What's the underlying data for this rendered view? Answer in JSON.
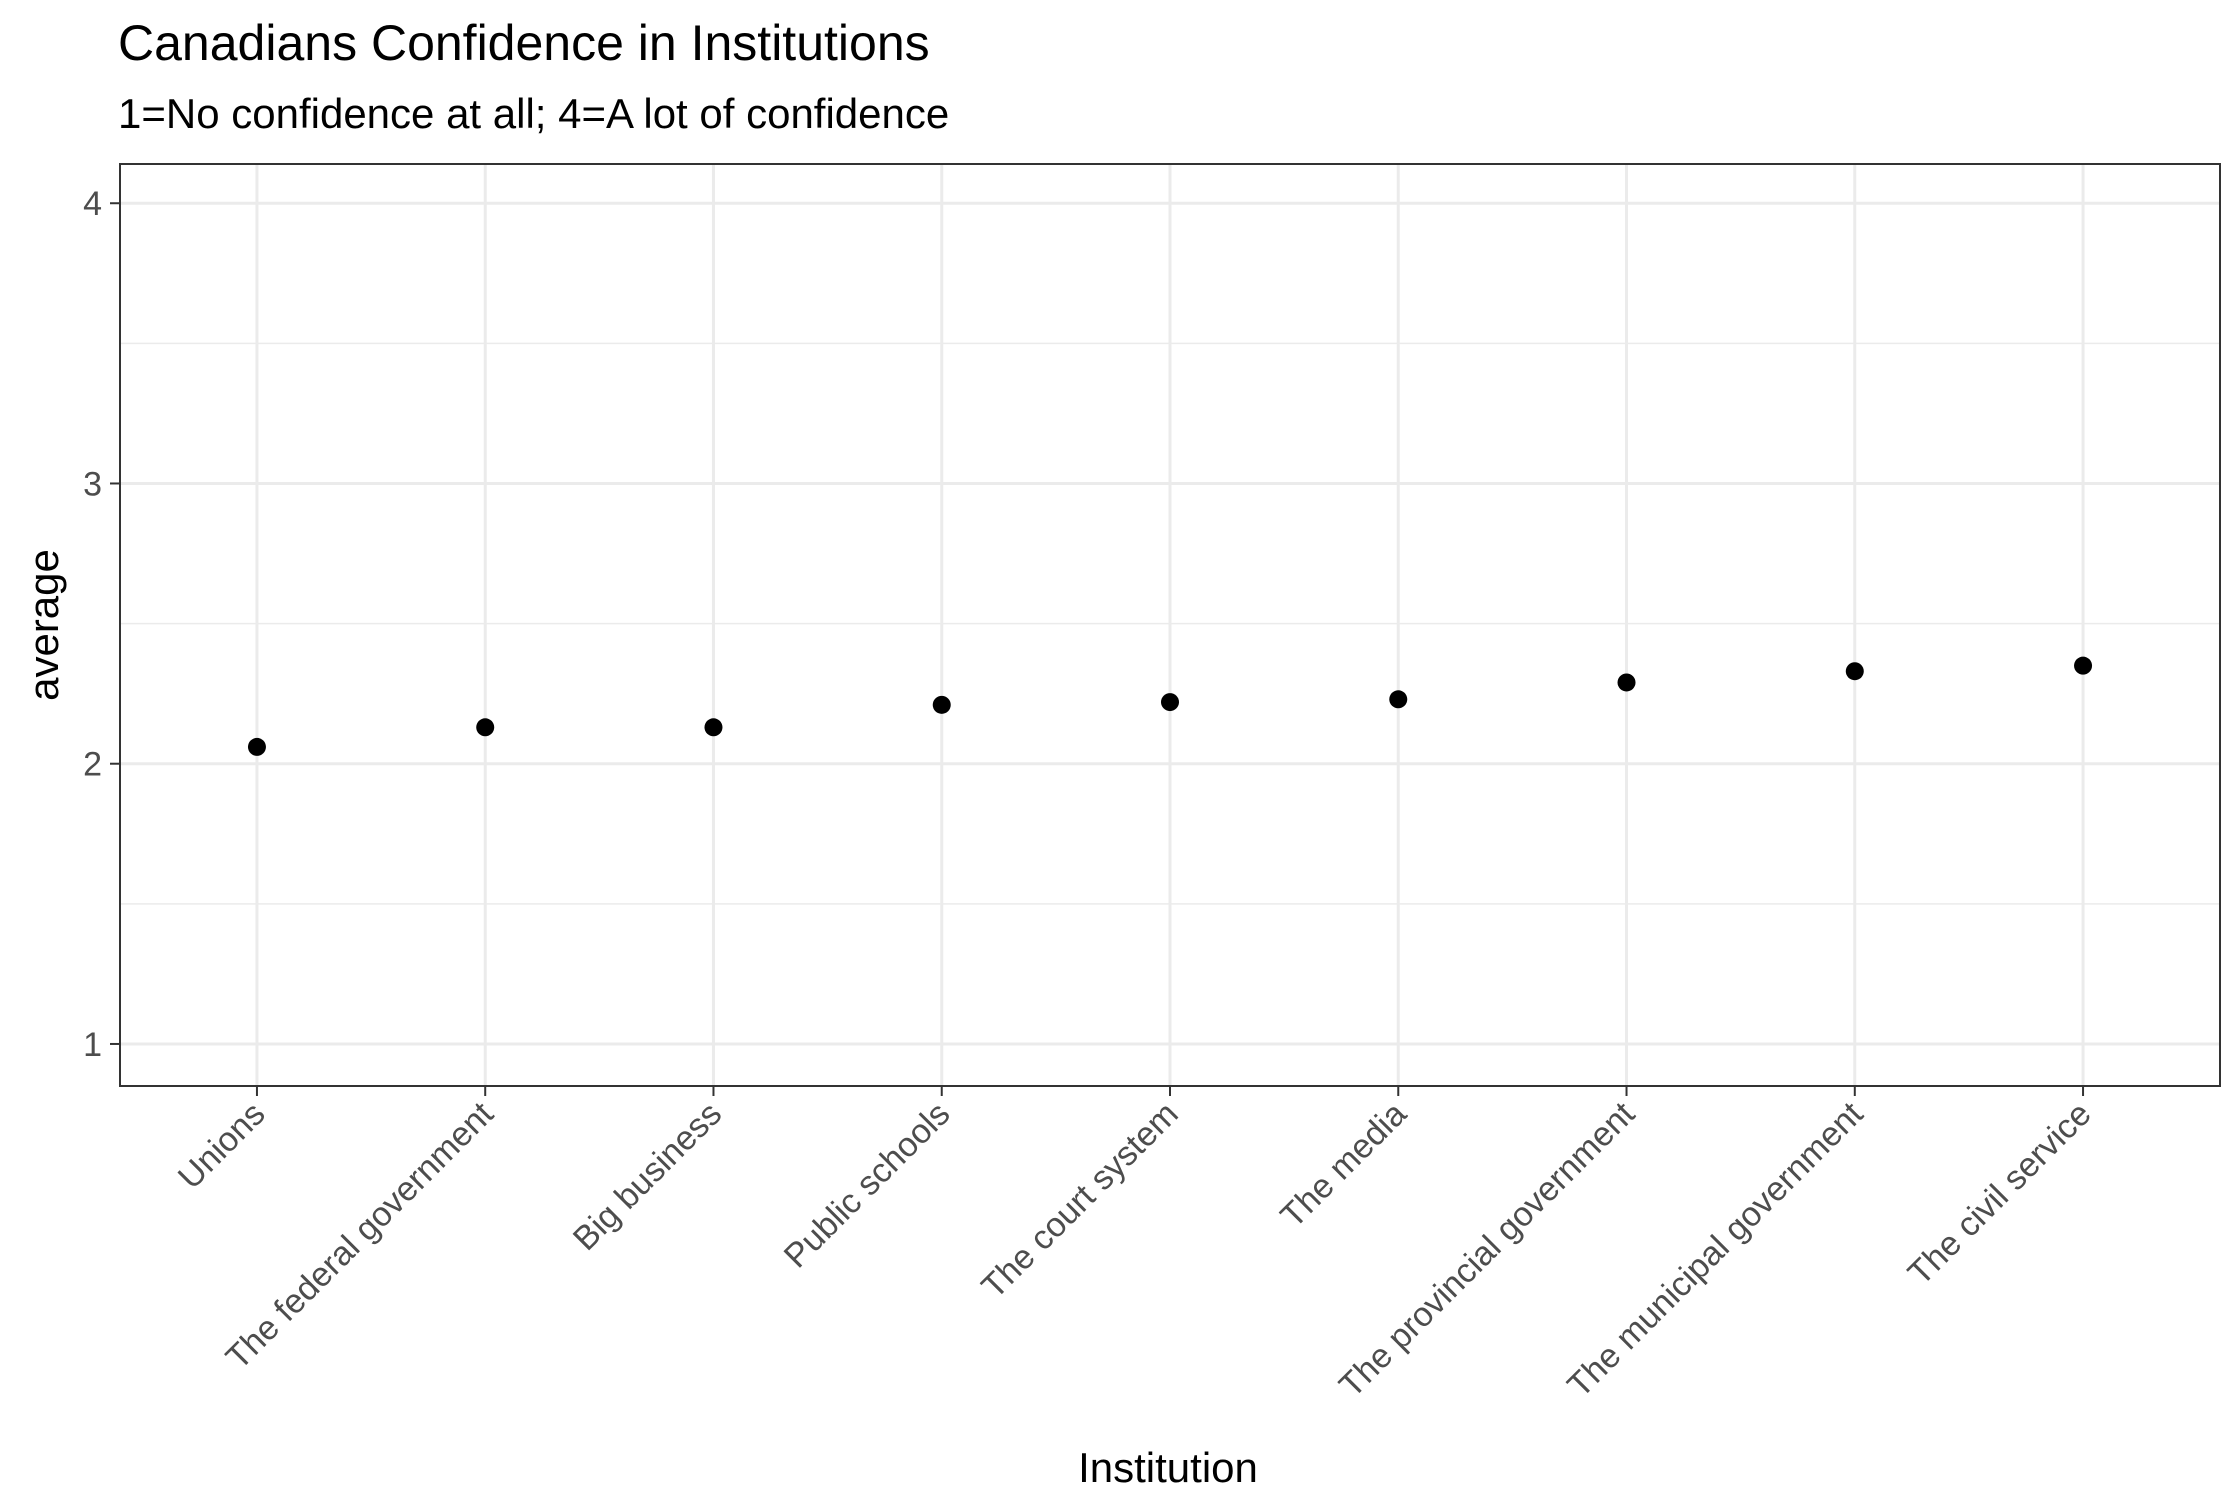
{
  "chart_data": {
    "type": "scatter",
    "title": "Canadians Confidence in Institutions",
    "subtitle": "1=No confidence at all; 4=A lot of confidence",
    "xlabel": "Institution",
    "ylabel": "average",
    "categories": [
      "Unions",
      "The federal government",
      "Big business",
      "Public schools",
      "The court system",
      "The media",
      "The provincial government",
      "The municipal government",
      "The civil service"
    ],
    "values": [
      2.06,
      2.13,
      2.13,
      2.21,
      2.22,
      2.23,
      2.29,
      2.33,
      2.35
    ],
    "ylim": [
      0.85,
      4.14
    ],
    "yticks": [
      1,
      2,
      3,
      4
    ],
    "yminor": [
      1.5,
      2.5,
      3.5
    ],
    "grid": true,
    "legend": "none",
    "colors": {
      "point": "#000000",
      "grid": "#ebebeb",
      "panel_border": "#333333",
      "tick_text": "#4d4d4d",
      "axis_tick": "#333333"
    }
  }
}
